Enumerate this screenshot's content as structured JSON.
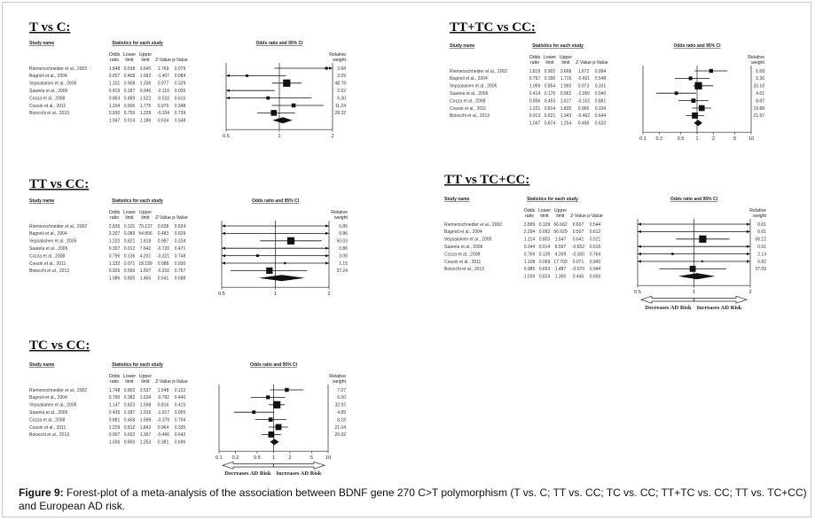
{
  "caption": {
    "label": "Figure 9:",
    "text": " Forest-plot of a meta-analysis of the association between BDNF gene 270 C>T polymorphism (T vs. C; TT vs. CC; TC vs. CC; TT+TC vs. CC; TT vs. TC+CC) and European AD risk."
  },
  "headers": {
    "study_name": "Study name",
    "stats": "Statistics for each study",
    "odds_ratio_ci": "Odds ratio and 95% CI",
    "relative": "Relative",
    "weight": "weight",
    "cols_top": [
      "Odds",
      "Lower",
      "Upper",
      "",
      ""
    ],
    "cols_bot": [
      "ratio",
      "limit",
      "limit",
      "Z-Value",
      "p-Value"
    ]
  },
  "arrows": {
    "decreases": "Decreases AD Risk",
    "increases": "Increases AD Risk"
  },
  "chart_data": [
    {
      "type": "forest",
      "title": "T vs C:",
      "x_scale": "log",
      "xlim": [
        0.5,
        2
      ],
      "x_ticks": [
        "0.5",
        "1",
        "2"
      ],
      "studies": [
        "Riemenschneider et al., 2002",
        "Bagnoli et al., 2004",
        "Vepsalainen et al., 2005",
        "Saarela et al., 2006",
        "Cozza et al., 2008",
        "Cousin et al., 2011",
        "Boiocchi et al., 2013"
      ],
      "rows": [
        [
          "1.848",
          "0.938",
          "3.640",
          "1.769",
          "0.079",
          "3.68"
        ],
        [
          "0.657",
          "0.409",
          "1.092",
          "-1.407",
          "0.084",
          "3.09"
        ],
        [
          "1.101",
          "0.908",
          "1.336",
          "0.977",
          "0.329",
          "48.78"
        ],
        [
          "0.419",
          "0.187",
          "0.940",
          "-2.110",
          "0.035",
          "2.62"
        ],
        [
          "0.863",
          "0.489",
          "1.522",
          "-0.510",
          "0.610",
          "6.30"
        ],
        [
          "1.204",
          "0.906",
          "1.775",
          "0.976",
          "0.348",
          "11.24"
        ],
        [
          "0.930",
          "0.750",
          "1.228",
          "-0.334",
          "0.739",
          "28.32"
        ]
      ],
      "summary": [
        "1.047",
        "0.914",
        "1.186",
        "0.634",
        "0.548"
      ],
      "or": [
        1.848,
        0.657,
        1.101,
        0.419,
        0.863,
        1.204,
        0.93
      ],
      "lower": [
        0.938,
        0.409,
        0.908,
        0.187,
        0.489,
        0.906,
        0.75
      ],
      "upper": [
        3.64,
        1.092,
        1.336,
        0.94,
        1.522,
        1.775,
        1.228
      ],
      "weight": [
        3.68,
        3.09,
        48.78,
        2.62,
        6.3,
        11.24,
        28.32
      ],
      "summary_or": 1.047,
      "summary_lower": 0.914,
      "summary_upper": 1.186,
      "arrows": false
    },
    {
      "type": "forest",
      "title": "TT+TC vs CC:",
      "x_scale": "log",
      "xlim": [
        0.1,
        10
      ],
      "x_ticks": [
        "0.1",
        "0.2",
        "0.5",
        "1",
        "2",
        "5",
        "10"
      ],
      "studies": [
        "Riemenschneider et al., 2002",
        "Bagnoli et al., 2004",
        "Vepsalainen et al., 2005",
        "Saarela et al., 2006",
        "Cozza et al., 2008",
        "Cousin et al., 2011",
        "Boiocchi et al., 2013"
      ],
      "rows": [
        [
          "1.819",
          "0.902",
          "3.668",
          "1.672",
          "0.094",
          "6.68"
        ],
        [
          "0.757",
          "0.390",
          "1.716",
          "-0.601",
          "0.548",
          "5.36"
        ],
        [
          "1.059",
          "0.854",
          "1.993",
          "0.973",
          "0.331",
          "33.18"
        ],
        [
          "0.414",
          "0.176",
          "0.962",
          "-2.050",
          "0.040",
          "4.61"
        ],
        [
          "0.856",
          "0.453",
          "1.617",
          "-0.152",
          "0.881",
          "8.87"
        ],
        [
          "1.221",
          "0.814",
          "1.835",
          "0.965",
          "0.334",
          "19.88"
        ],
        [
          "0.913",
          "0.621",
          "1.343",
          "-0.462",
          "0.644",
          "21.97"
        ]
      ],
      "summary": [
        "1.047",
        "0.874",
        "1.254",
        "0.498",
        "0.620"
      ],
      "or": [
        1.819,
        0.757,
        1.059,
        0.414,
        0.856,
        1.221,
        0.913
      ],
      "lower": [
        0.902,
        0.39,
        0.854,
        0.176,
        0.453,
        0.814,
        0.621
      ],
      "upper": [
        3.668,
        1.716,
        1.993,
        0.962,
        1.617,
        1.835,
        1.343
      ],
      "weight": [
        6.68,
        5.36,
        33.18,
        4.61,
        8.87,
        19.88,
        21.97
      ],
      "summary_or": 1.047,
      "summary_lower": 0.874,
      "summary_upper": 1.254,
      "arrows": false
    },
    {
      "type": "forest",
      "title": "TT vs CC:",
      "x_scale": "log",
      "xlim": [
        0.5,
        2
      ],
      "x_ticks": [
        "0.5",
        "1",
        "2"
      ],
      "studies": [
        "Riemenschneider et al., 2002",
        "Bagnoli et al., 2004",
        "Vepsalainen et al., 2005",
        "Saarela et al., 2006",
        "Cozza et al., 2008",
        "Cousin et al., 2011",
        "Boiocchi et al., 2013"
      ],
      "rows": [
        [
          "2.835",
          "0.115",
          "70.137",
          "0.638",
          "0.524",
          "0.86"
        ],
        [
          "2.207",
          "0.089",
          "54.856",
          "0.483",
          "0.629",
          "0.86"
        ],
        [
          "1.222",
          "0.821",
          "1.818",
          "0.987",
          "0.324",
          "50.03"
        ],
        [
          "0.307",
          "0.012",
          "7.642",
          "-0.720",
          "0.471",
          "0.86"
        ],
        [
          "0.795",
          "0.136",
          "4.201",
          "-0.321",
          "0.748",
          "3.00"
        ],
        [
          "1.132",
          "0.071",
          "18.189",
          "0.088",
          "0.930",
          "1.15"
        ],
        [
          "0.926",
          "0.560",
          "1.507",
          "-0.310",
          "0.757",
          "37.24"
        ]
      ],
      "summary": [
        "1.086",
        "0.805",
        "1.465",
        "0.541",
        "0.588"
      ],
      "or": [
        2.835,
        2.207,
        1.222,
        0.307,
        0.795,
        1.132,
        0.926
      ],
      "lower": [
        0.115,
        0.089,
        0.821,
        0.012,
        0.136,
        0.071,
        0.56
      ],
      "upper": [
        70.137,
        54.856,
        1.818,
        7.642,
        4.201,
        18.189,
        1.507
      ],
      "weight": [
        0.86,
        0.86,
        50.03,
        0.86,
        3.0,
        1.15,
        37.24
      ],
      "summary_or": 1.086,
      "summary_lower": 0.805,
      "summary_upper": 1.465,
      "arrows": false
    },
    {
      "type": "forest",
      "title": "TT vs TC+CC:",
      "x_scale": "log",
      "xlim": [
        0.5,
        2
      ],
      "x_ticks": [
        "0.5",
        "1",
        "2"
      ],
      "studies": [
        "Riemenschneider et al., 2002",
        "Bagnoli et al., 2004",
        "Vepsalainen et al., 2005",
        "Saarela et al., 2006",
        "Cozza et al., 2008",
        "Cousin et al., 2011",
        "Boiocchi et al., 2013"
      ],
      "rows": [
        [
          "2.899",
          "0.109",
          "66.662",
          "0.607",
          "0.544",
          "0.61"
        ],
        [
          "2.294",
          "0.092",
          "56.929",
          "0.507",
          "0.612",
          "0.61"
        ],
        [
          "1.114",
          "0.803",
          "1.547",
          "0.641",
          "0.521",
          "58.12"
        ],
        [
          "0.344",
          "0.014",
          "8.597",
          "-0.652",
          "0.515",
          "0.61"
        ],
        [
          "0.769",
          "0.139",
          "4.269",
          "-0.300",
          "0.764",
          "2.14"
        ],
        [
          "1.108",
          "0.069",
          "17.793",
          "0.071",
          "0.943",
          "0.82"
        ],
        [
          "0.985",
          "0.653",
          "1.487",
          "-0.070",
          "0.944",
          "37.09"
        ]
      ],
      "summary": [
        "1.039",
        "0.824",
        "1.300",
        "0.445",
        "0.656"
      ],
      "or": [
        2.899,
        2.294,
        1.114,
        0.344,
        0.769,
        1.108,
        0.985
      ],
      "lower": [
        0.109,
        0.092,
        0.803,
        0.014,
        0.139,
        0.069,
        0.653
      ],
      "upper": [
        66.662,
        56.929,
        1.547,
        8.597,
        4.269,
        17.793,
        1.487
      ],
      "weight": [
        0.61,
        0.61,
        58.12,
        0.61,
        2.14,
        0.82,
        37.09
      ],
      "summary_or": 1.039,
      "summary_lower": 0.824,
      "summary_upper": 1.3,
      "arrows": true
    },
    {
      "type": "forest",
      "title": "TC vs CC:",
      "x_scale": "log",
      "xlim": [
        0.1,
        10
      ],
      "x_ticks": [
        "0.1",
        "0.2",
        "0.5",
        "1",
        "2",
        "5",
        "10"
      ],
      "studies": [
        "Riemenschneider et al., 2002",
        "Bagnoli et al., 2004",
        "Vepsalainen et al., 2005",
        "Saarela et al., 2006",
        "Cozza et al., 2008",
        "Cousin et al., 2011",
        "Boiocchi et al., 2013"
      ],
      "rows": [
        [
          "1.748",
          "0.862",
          "3.537",
          "1.548",
          "0.122",
          "7.07"
        ],
        [
          "0.790",
          "0.382",
          "1.634",
          "-0.792",
          "0.440",
          "6.00"
        ],
        [
          "1.147",
          "0.823",
          "1.598",
          "0.816",
          "0.415",
          "32.92"
        ],
        [
          "0.435",
          "0.187",
          "1.016",
          "-1.917",
          "0.055",
          "4.89"
        ],
        [
          "0.881",
          "0.458",
          "1.699",
          "-0.379",
          "0.704",
          "8.18"
        ],
        [
          "1.229",
          "0.812",
          "1.842",
          "0.964",
          "0.335",
          "21.04"
        ],
        [
          "0.907",
          "0.602",
          "1.367",
          "-0.466",
          "0.642",
          "20.92"
        ]
      ],
      "summary": [
        "1.036",
        "0.860",
        "1.253",
        "0.381",
        "0.696"
      ],
      "or": [
        1.748,
        0.79,
        1.147,
        0.435,
        0.881,
        1.229,
        0.907
      ],
      "lower": [
        0.862,
        0.382,
        0.823,
        0.187,
        0.458,
        0.812,
        0.602
      ],
      "upper": [
        3.537,
        1.634,
        1.598,
        1.016,
        1.699,
        1.842,
        1.367
      ],
      "weight": [
        7.07,
        6.0,
        32.92,
        4.89,
        8.18,
        21.04,
        20.92
      ],
      "summary_or": 1.036,
      "summary_lower": 0.86,
      "summary_upper": 1.253,
      "arrows": true
    }
  ]
}
